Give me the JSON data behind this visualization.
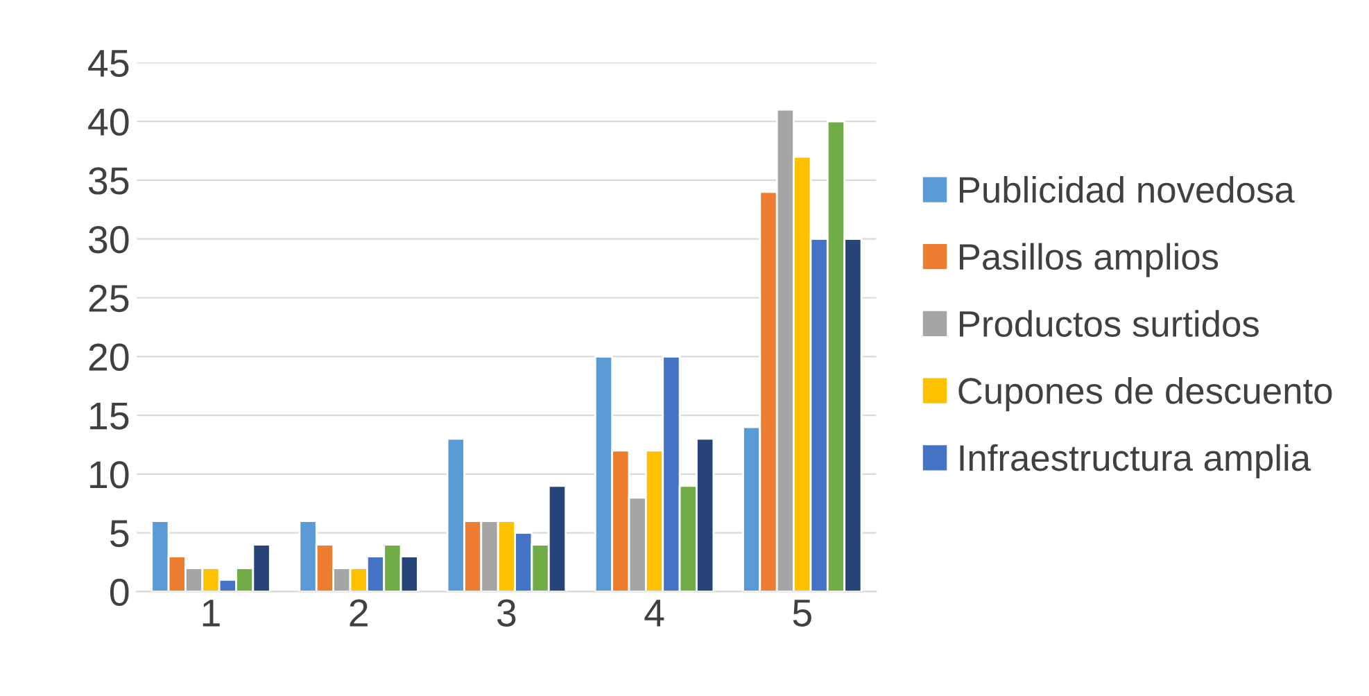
{
  "chart_data": {
    "type": "bar",
    "categories": [
      "1",
      "2",
      "3",
      "4",
      "5"
    ],
    "series": [
      {
        "name": "Publicidad novedosa",
        "color": "#5b9bd5",
        "values": [
          6,
          6,
          13,
          20,
          14
        ]
      },
      {
        "name": "Pasillos amplios",
        "color": "#ed7d31",
        "values": [
          3,
          4,
          6,
          12,
          34
        ]
      },
      {
        "name": "Productos surtidos",
        "color": "#a5a5a5",
        "values": [
          2,
          2,
          6,
          8,
          41
        ]
      },
      {
        "name": "Cupones de descuento",
        "color": "#ffc000",
        "values": [
          2,
          2,
          6,
          12,
          37
        ]
      },
      {
        "name": "Infraestructura amplia",
        "color": "#4472c4",
        "values": [
          1,
          3,
          5,
          20,
          30
        ]
      },
      {
        "color": "#70ad47",
        "values": [
          2,
          4,
          4,
          9,
          40
        ]
      },
      {
        "color": "#264478",
        "values": [
          4,
          3,
          9,
          13,
          30
        ]
      }
    ],
    "ylim": [
      0,
      45
    ],
    "yticks": [
      0,
      5,
      10,
      15,
      20,
      25,
      30,
      35,
      40,
      45
    ],
    "grid": "y",
    "legend": "right"
  }
}
